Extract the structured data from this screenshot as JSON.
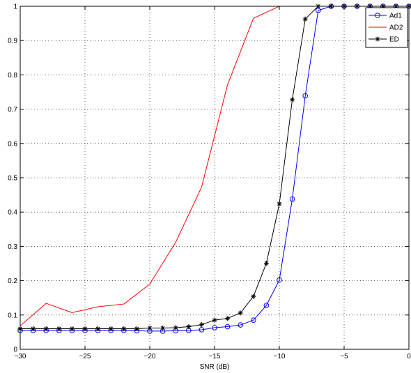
{
  "chart_data": {
    "type": "line",
    "title": "",
    "xlabel": "SNR (dB)",
    "ylabel": "",
    "xlim": [
      -30,
      0
    ],
    "ylim": [
      0,
      1
    ],
    "xticks": [
      -30,
      -25,
      -20,
      -15,
      -10,
      -5,
      0
    ],
    "xtick_labels": [
      "−30",
      "−25",
      "−20",
      "−15",
      "−10",
      "−5",
      "0"
    ],
    "yticks": [
      0,
      0.1,
      0.2,
      0.3,
      0.4,
      0.5,
      0.6,
      0.7,
      0.8,
      0.9,
      1
    ],
    "ytick_labels": [
      "0",
      "0.1",
      "0.2",
      "0.3",
      "0.4",
      "0.5",
      "0.6",
      "0.7",
      "0.8",
      "0.9",
      "1"
    ],
    "grid": true,
    "legend_position": "top-right",
    "series": [
      {
        "name": "Ad1",
        "color": "#0000ff",
        "marker": "circle",
        "x": [
          -30,
          -29,
          -28,
          -27,
          -26,
          -25,
          -24,
          -23,
          -22,
          -21,
          -20,
          -19,
          -18,
          -17,
          -16,
          -15,
          -14,
          -13,
          -12,
          -11,
          -10,
          -9,
          -8,
          -7,
          -6,
          -5,
          -4,
          -3,
          -2,
          -1,
          0
        ],
        "y": [
          0.055,
          0.055,
          0.055,
          0.055,
          0.055,
          0.055,
          0.055,
          0.055,
          0.055,
          0.054,
          0.053,
          0.053,
          0.054,
          0.055,
          0.057,
          0.063,
          0.066,
          0.071,
          0.085,
          0.128,
          0.202,
          0.438,
          0.739,
          0.988,
          1,
          1,
          1,
          1,
          1,
          1,
          1
        ]
      },
      {
        "name": "AD2",
        "color": "#ff0000",
        "marker": "none",
        "x": [
          -30,
          -28,
          -26,
          -24,
          -22,
          -20,
          -18,
          -16,
          -14,
          -12,
          -10,
          -8,
          -6,
          -4,
          -2,
          0
        ],
        "y": [
          0.068,
          0.134,
          0.107,
          0.124,
          0.132,
          0.19,
          0.312,
          0.473,
          0.771,
          0.965,
          1,
          1,
          1,
          1,
          1,
          1
        ]
      },
      {
        "name": "ED",
        "color": "#000000",
        "marker": "star",
        "x": [
          -30,
          -29,
          -28,
          -27,
          -26,
          -25,
          -24,
          -23,
          -22,
          -21,
          -20,
          -19,
          -18,
          -17,
          -16,
          -15,
          -14,
          -13,
          -12,
          -11,
          -10,
          -9,
          -8,
          -7,
          -6,
          -5,
          -4,
          -3,
          -2,
          -1,
          0
        ],
        "y": [
          0.06,
          0.06,
          0.06,
          0.06,
          0.06,
          0.06,
          0.06,
          0.06,
          0.06,
          0.06,
          0.062,
          0.062,
          0.063,
          0.066,
          0.072,
          0.085,
          0.09,
          0.106,
          0.154,
          0.251,
          0.424,
          0.728,
          0.963,
          1,
          1,
          1,
          1,
          1,
          1,
          1,
          1
        ]
      }
    ]
  }
}
